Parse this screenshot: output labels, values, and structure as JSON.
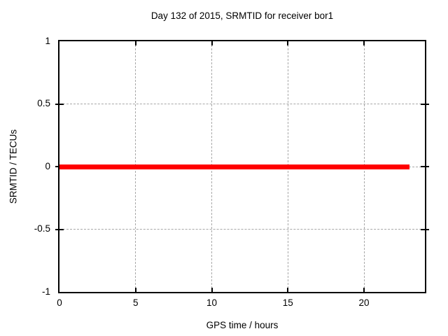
{
  "chart_data": {
    "type": "line",
    "title": "Day 132 of 2015, SRMTID for receiver bor1",
    "xlabel": "GPS time / hours",
    "ylabel": "SRMTID / TECUs",
    "xlim": [
      0,
      24
    ],
    "ylim": [
      -1,
      1
    ],
    "x_ticks": [
      0,
      5,
      10,
      15,
      20
    ],
    "y_ticks": [
      -1,
      -0.5,
      0,
      0.5,
      1
    ],
    "grid": true,
    "legend": "none",
    "series": [
      {
        "name": "SRMTID",
        "style": "thick horizontal line",
        "y": 0,
        "x_start": 0,
        "x_end": 23,
        "color": "#ff0000",
        "points": [
          [
            0,
            0
          ],
          [
            23,
            0
          ]
        ]
      }
    ]
  },
  "colors": {
    "background": "#ffffff",
    "border": "#000000",
    "grid": "#a8a8a8",
    "text": "#000000",
    "line": "#ff0000"
  }
}
